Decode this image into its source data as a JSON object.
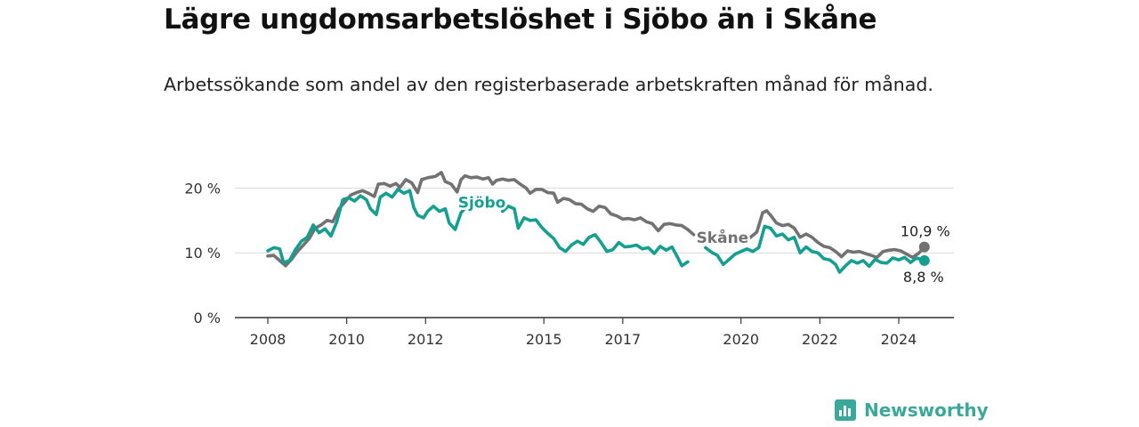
{
  "title": "Lägre ungdomsarbetslöshet i Sjöbo än i Skåne",
  "subtitle": "Arbetssökande som andel av den registerbaserade arbetskraften månad för månad.",
  "brand": {
    "name": "Newsworthy",
    "icon": "bar-chart-icon"
  },
  "colors": {
    "sjobo": "#159f91",
    "skane": "#727272",
    "grid": "#d9d9d9",
    "axis": "#333333"
  },
  "chart_data": {
    "type": "line",
    "title": "Lägre ungdomsarbetslöshet i Sjöbo än i Skåne",
    "subtitle": "Arbetssökande som andel av den registerbaserade arbetskraften månad för månad.",
    "xlabel": "",
    "ylabel": "",
    "ylim": [
      0,
      25
    ],
    "xlim": [
      2007.4,
      2025.5
    ],
    "grid": true,
    "y_ticks": [
      {
        "value": 0,
        "label": "0 %"
      },
      {
        "value": 10,
        "label": "10 %"
      },
      {
        "value": 20,
        "label": "20 %"
      }
    ],
    "x_ticks": [
      {
        "value": 2008,
        "label": "2008"
      },
      {
        "value": 2010,
        "label": "2010"
      },
      {
        "value": 2012,
        "label": "2012"
      },
      {
        "value": 2015,
        "label": "2015"
      },
      {
        "value": 2017,
        "label": "2017"
      },
      {
        "value": 2020,
        "label": "2020"
      },
      {
        "value": 2022,
        "label": "2022"
      },
      {
        "value": 2024,
        "label": "2024"
      }
    ],
    "series": [
      {
        "name": "Skåne",
        "label_at": 2018.8,
        "end_label": "10,9 %",
        "points": [
          [
            2008.0,
            9.5
          ],
          [
            2008.15,
            9.6
          ],
          [
            2008.3,
            8.8
          ],
          [
            2008.45,
            8.0
          ],
          [
            2008.6,
            9.0
          ],
          [
            2008.75,
            10.2
          ],
          [
            2008.9,
            11.2
          ],
          [
            2009.05,
            12.2
          ],
          [
            2009.2,
            13.8
          ],
          [
            2009.35,
            14.3
          ],
          [
            2009.5,
            15.0
          ],
          [
            2009.65,
            14.8
          ],
          [
            2009.8,
            16.8
          ],
          [
            2009.95,
            17.8
          ],
          [
            2010.1,
            18.9
          ],
          [
            2010.25,
            19.3
          ],
          [
            2010.4,
            19.6
          ],
          [
            2010.55,
            19.2
          ],
          [
            2010.7,
            18.7
          ],
          [
            2010.8,
            20.6
          ],
          [
            2010.95,
            20.7
          ],
          [
            2011.1,
            20.3
          ],
          [
            2011.25,
            20.7
          ],
          [
            2011.35,
            20.1
          ],
          [
            2011.5,
            21.3
          ],
          [
            2011.65,
            20.8
          ],
          [
            2011.8,
            19.3
          ],
          [
            2011.9,
            21.3
          ],
          [
            2012.05,
            21.6
          ],
          [
            2012.25,
            21.8
          ],
          [
            2012.4,
            22.4
          ],
          [
            2012.5,
            21.0
          ],
          [
            2012.65,
            20.6
          ],
          [
            2012.8,
            19.4
          ],
          [
            2012.9,
            21.3
          ],
          [
            2013.0,
            21.9
          ],
          [
            2013.15,
            21.6
          ],
          [
            2013.3,
            21.7
          ],
          [
            2013.45,
            21.4
          ],
          [
            2013.6,
            21.6
          ],
          [
            2013.7,
            20.6
          ],
          [
            2013.8,
            21.2
          ],
          [
            2013.95,
            21.4
          ],
          [
            2014.1,
            21.2
          ],
          [
            2014.25,
            21.3
          ],
          [
            2014.4,
            20.6
          ],
          [
            2014.55,
            20.0
          ],
          [
            2014.65,
            19.2
          ],
          [
            2014.8,
            19.8
          ],
          [
            2014.95,
            19.8
          ],
          [
            2015.1,
            19.3
          ],
          [
            2015.25,
            19.2
          ],
          [
            2015.35,
            17.8
          ],
          [
            2015.5,
            18.4
          ],
          [
            2015.65,
            18.2
          ],
          [
            2015.8,
            17.6
          ],
          [
            2015.95,
            17.5
          ],
          [
            2016.1,
            16.8
          ],
          [
            2016.25,
            16.4
          ],
          [
            2016.4,
            17.2
          ],
          [
            2016.55,
            17.0
          ],
          [
            2016.7,
            16.0
          ],
          [
            2016.85,
            15.7
          ],
          [
            2017.0,
            15.2
          ],
          [
            2017.15,
            15.3
          ],
          [
            2017.3,
            15.1
          ],
          [
            2017.45,
            15.4
          ],
          [
            2017.6,
            14.8
          ],
          [
            2017.75,
            14.5
          ],
          [
            2017.9,
            13.4
          ],
          [
            2018.05,
            14.4
          ],
          [
            2018.2,
            14.5
          ],
          [
            2018.35,
            14.3
          ],
          [
            2018.5,
            14.2
          ],
          [
            2018.65,
            13.6
          ],
          [
            2018.8,
            12.8
          ]
        ],
        "points_b": [
          [
            2020.0,
            11.8
          ],
          [
            2020.2,
            12.2
          ],
          [
            2020.4,
            13.2
          ],
          [
            2020.55,
            16.2
          ],
          [
            2020.65,
            16.5
          ],
          [
            2020.75,
            15.8
          ],
          [
            2020.9,
            14.6
          ],
          [
            2021.05,
            14.2
          ],
          [
            2021.2,
            14.4
          ],
          [
            2021.35,
            13.8
          ],
          [
            2021.5,
            12.4
          ],
          [
            2021.65,
            12.9
          ],
          [
            2021.8,
            12.4
          ],
          [
            2021.95,
            11.6
          ],
          [
            2022.1,
            11.0
          ],
          [
            2022.25,
            10.8
          ],
          [
            2022.4,
            10.2
          ],
          [
            2022.55,
            9.4
          ],
          [
            2022.7,
            10.3
          ],
          [
            2022.85,
            10.1
          ],
          [
            2023.0,
            10.2
          ],
          [
            2023.15,
            9.9
          ],
          [
            2023.3,
            9.6
          ],
          [
            2023.45,
            9.3
          ],
          [
            2023.6,
            10.2
          ],
          [
            2023.75,
            10.4
          ],
          [
            2023.9,
            10.5
          ],
          [
            2024.05,
            10.3
          ],
          [
            2024.2,
            9.8
          ],
          [
            2024.35,
            9.3
          ],
          [
            2024.5,
            9.9
          ],
          [
            2024.65,
            10.9
          ]
        ]
      },
      {
        "name": "Sjöbo",
        "label_at": 2013.5,
        "end_label": "8,8 %",
        "points": [
          [
            2008.0,
            10.3
          ],
          [
            2008.15,
            10.8
          ],
          [
            2008.3,
            10.6
          ],
          [
            2008.4,
            8.5
          ],
          [
            2008.55,
            8.8
          ],
          [
            2008.7,
            10.5
          ],
          [
            2008.85,
            11.8
          ],
          [
            2009.0,
            12.4
          ],
          [
            2009.15,
            14.3
          ],
          [
            2009.3,
            13.1
          ],
          [
            2009.45,
            13.7
          ],
          [
            2009.6,
            12.6
          ],
          [
            2009.75,
            14.8
          ],
          [
            2009.9,
            18.2
          ],
          [
            2010.05,
            18.5
          ],
          [
            2010.2,
            18.0
          ],
          [
            2010.35,
            18.8
          ],
          [
            2010.5,
            18.2
          ],
          [
            2010.6,
            16.8
          ],
          [
            2010.75,
            15.9
          ],
          [
            2010.85,
            18.6
          ],
          [
            2011.0,
            19.2
          ],
          [
            2011.15,
            18.6
          ],
          [
            2011.3,
            19.8
          ],
          [
            2011.45,
            19.2
          ],
          [
            2011.6,
            19.6
          ],
          [
            2011.7,
            17.0
          ],
          [
            2011.8,
            15.8
          ],
          [
            2011.95,
            15.4
          ],
          [
            2012.05,
            16.4
          ],
          [
            2012.2,
            17.2
          ],
          [
            2012.35,
            16.4
          ],
          [
            2012.5,
            16.8
          ],
          [
            2012.6,
            14.6
          ],
          [
            2012.75,
            13.6
          ],
          [
            2012.9,
            16.2
          ],
          [
            2013.05,
            17.2
          ],
          [
            2013.2,
            17.6
          ]
        ],
        "points_b": [
          [
            2013.95,
            16.4
          ],
          [
            2014.1,
            17.2
          ],
          [
            2014.25,
            16.8
          ],
          [
            2014.35,
            13.8
          ],
          [
            2014.5,
            15.4
          ],
          [
            2014.65,
            15.0
          ],
          [
            2014.8,
            15.1
          ],
          [
            2014.95,
            13.9
          ],
          [
            2015.1,
            13.0
          ],
          [
            2015.25,
            12.2
          ],
          [
            2015.4,
            10.8
          ],
          [
            2015.55,
            10.2
          ],
          [
            2015.7,
            11.2
          ],
          [
            2015.85,
            11.8
          ],
          [
            2016.0,
            11.3
          ],
          [
            2016.15,
            12.4
          ],
          [
            2016.3,
            12.8
          ],
          [
            2016.45,
            11.6
          ],
          [
            2016.6,
            10.2
          ],
          [
            2016.75,
            10.5
          ],
          [
            2016.9,
            11.6
          ],
          [
            2017.05,
            10.9
          ],
          [
            2017.2,
            11.0
          ],
          [
            2017.35,
            11.2
          ],
          [
            2017.5,
            10.6
          ],
          [
            2017.65,
            10.8
          ],
          [
            2017.8,
            9.9
          ],
          [
            2017.95,
            11.0
          ],
          [
            2018.1,
            10.4
          ],
          [
            2018.25,
            10.9
          ],
          [
            2018.4,
            9.2
          ],
          [
            2018.5,
            8.0
          ],
          [
            2018.65,
            8.6
          ]
        ],
        "points_c": [
          [
            2019.1,
            10.8
          ],
          [
            2019.25,
            10.1
          ],
          [
            2019.4,
            9.6
          ],
          [
            2019.55,
            8.2
          ],
          [
            2019.7,
            9.0
          ],
          [
            2019.85,
            9.8
          ],
          [
            2020.0,
            10.2
          ],
          [
            2020.15,
            10.6
          ],
          [
            2020.3,
            10.2
          ],
          [
            2020.45,
            10.8
          ],
          [
            2020.6,
            14.1
          ],
          [
            2020.75,
            13.8
          ],
          [
            2020.9,
            12.6
          ],
          [
            2021.05,
            12.9
          ],
          [
            2021.2,
            12.0
          ],
          [
            2021.35,
            12.4
          ],
          [
            2021.5,
            10.0
          ],
          [
            2021.65,
            10.9
          ],
          [
            2021.8,
            10.2
          ],
          [
            2021.95,
            10.0
          ],
          [
            2022.1,
            9.1
          ],
          [
            2022.25,
            8.9
          ],
          [
            2022.4,
            8.2
          ],
          [
            2022.5,
            7.0
          ],
          [
            2022.65,
            8.0
          ],
          [
            2022.8,
            8.8
          ],
          [
            2022.95,
            8.4
          ],
          [
            2023.1,
            8.8
          ],
          [
            2023.25,
            7.9
          ],
          [
            2023.4,
            9.0
          ],
          [
            2023.55,
            8.5
          ],
          [
            2023.7,
            8.4
          ],
          [
            2023.85,
            9.2
          ],
          [
            2024.0,
            8.9
          ],
          [
            2024.15,
            9.3
          ],
          [
            2024.3,
            8.5
          ],
          [
            2024.45,
            9.2
          ],
          [
            2024.65,
            8.8
          ]
        ]
      }
    ]
  }
}
